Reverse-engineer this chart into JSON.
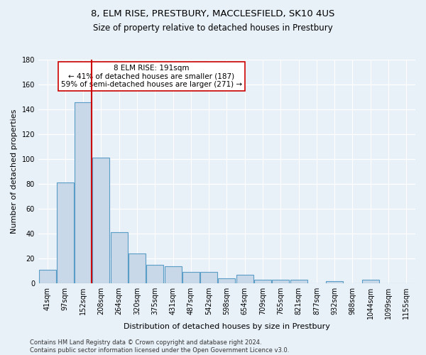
{
  "title": "8, ELM RISE, PRESTBURY, MACCLESFIELD, SK10 4US",
  "subtitle": "Size of property relative to detached houses in Prestbury",
  "xlabel": "Distribution of detached houses by size in Prestbury",
  "ylabel": "Number of detached properties",
  "footnote": "Contains HM Land Registry data © Crown copyright and database right 2024.\nContains public sector information licensed under the Open Government Licence v3.0.",
  "categories": [
    "41sqm",
    "97sqm",
    "152sqm",
    "208sqm",
    "264sqm",
    "320sqm",
    "375sqm",
    "431sqm",
    "487sqm",
    "542sqm",
    "598sqm",
    "654sqm",
    "709sqm",
    "765sqm",
    "821sqm",
    "877sqm",
    "932sqm",
    "988sqm",
    "1044sqm",
    "1099sqm",
    "1155sqm"
  ],
  "values": [
    11,
    81,
    146,
    101,
    41,
    24,
    15,
    14,
    9,
    9,
    4,
    7,
    3,
    3,
    3,
    0,
    2,
    0,
    3,
    0,
    0
  ],
  "bar_color": "#c8d8e8",
  "bar_edge_color": "#5a9ec8",
  "background_color": "#e8f0f8",
  "grid_color": "#ffffff",
  "vline_x": 2.48,
  "vline_color": "#cc0000",
  "annotation_text": "8 ELM RISE: 191sqm\n← 41% of detached houses are smaller (187)\n59% of semi-detached houses are larger (271) →",
  "annotation_box_color": "#ffffff",
  "annotation_box_edge": "#cc0000",
  "ylim": [
    0,
    180
  ],
  "yticks": [
    0,
    20,
    40,
    60,
    80,
    100,
    120,
    140,
    160,
    180
  ],
  "title_fontsize": 9.5,
  "subtitle_fontsize": 8.5,
  "ylabel_fontsize": 8,
  "xlabel_fontsize": 8,
  "tick_fontsize": 7,
  "annotation_fontsize": 7.5,
  "footnote_fontsize": 6
}
